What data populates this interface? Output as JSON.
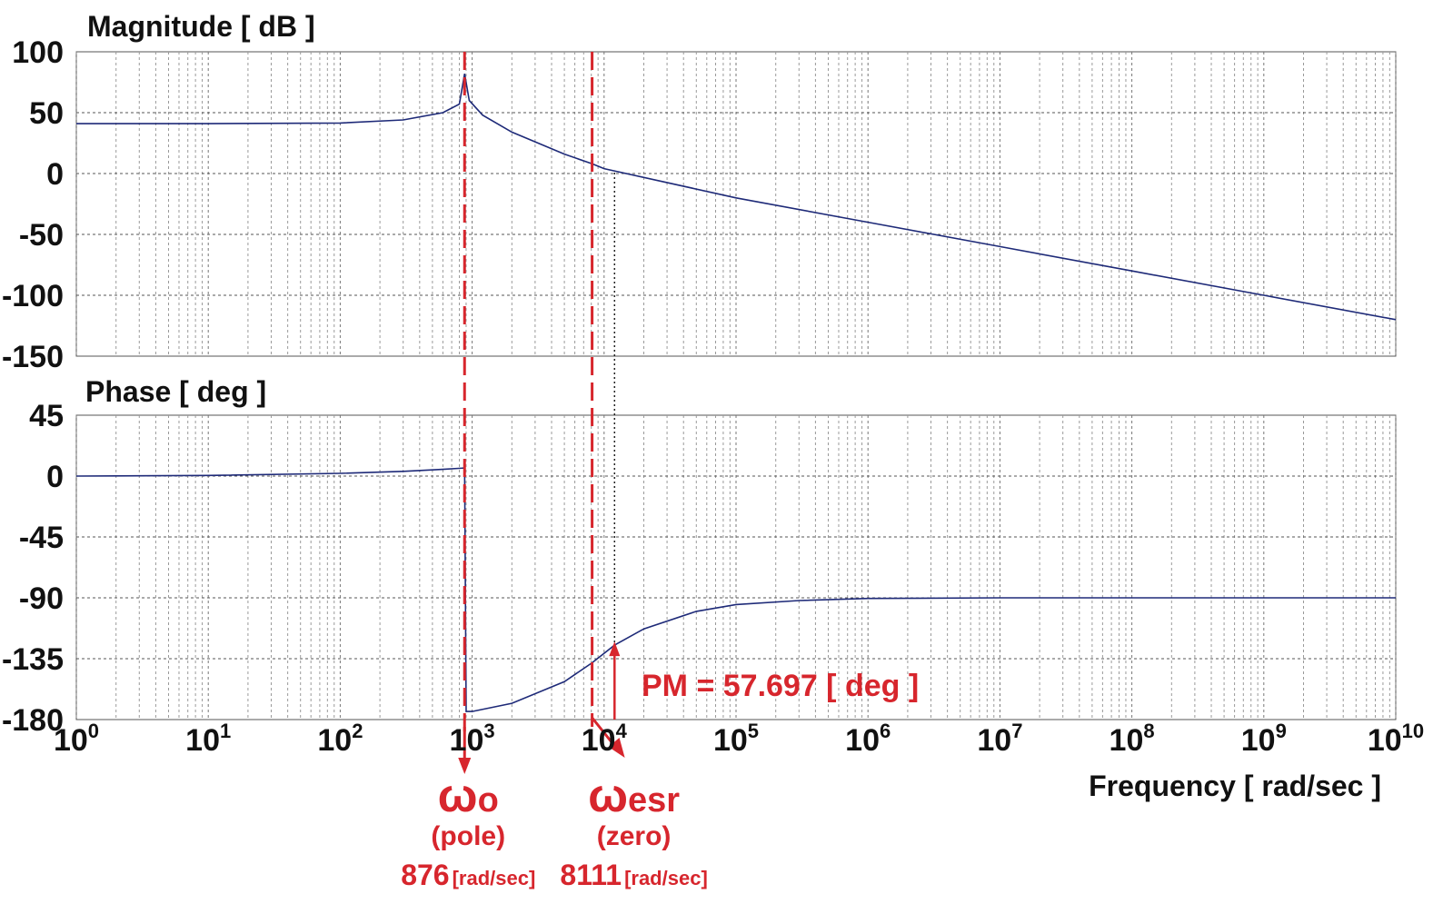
{
  "chart_data": [
    {
      "type": "line",
      "title": "Magnitude [ dB ]",
      "xscale": "log",
      "xlim": [
        1,
        10000000000
      ],
      "ylim": [
        -150,
        100
      ],
      "yticks": [
        "100",
        "50",
        "0",
        "-50",
        "-100",
        "-150"
      ],
      "grid": true,
      "series": [
        {
          "color": "#1e2a78",
          "x": [
            1,
            10,
            100,
            300,
            600,
            800,
            876,
            950,
            1200,
            2000,
            5000,
            8111,
            10000,
            100000,
            1000000,
            10000000,
            100000000,
            1000000000,
            10000000000
          ],
          "y": [
            41,
            41,
            41.5,
            44,
            50,
            57,
            82,
            60,
            48,
            34,
            16,
            8,
            4,
            -20,
            -40,
            -60,
            -80,
            -100,
            -120
          ]
        }
      ]
    },
    {
      "type": "line",
      "title": "Phase [ deg ]",
      "xscale": "log",
      "xlim": [
        1,
        10000000000
      ],
      "ylim": [
        -180,
        45
      ],
      "yticks": [
        "45",
        "0",
        "-45",
        "-90",
        "-135",
        "-180"
      ],
      "xticks": [
        {
          "base": "10",
          "exp": "0"
        },
        {
          "base": "10",
          "exp": "1"
        },
        {
          "base": "10",
          "exp": "2"
        },
        {
          "base": "10",
          "exp": "3"
        },
        {
          "base": "10",
          "exp": "4"
        },
        {
          "base": "10",
          "exp": "5"
        },
        {
          "base": "10",
          "exp": "6"
        },
        {
          "base": "10",
          "exp": "7"
        },
        {
          "base": "10",
          "exp": "8"
        },
        {
          "base": "10",
          "exp": "9"
        },
        {
          "base": "10",
          "exp": "10"
        }
      ],
      "xlabel": "Frequency [ rad/sec ]",
      "grid": true,
      "series": [
        {
          "color": "#1e2a78",
          "x": [
            1,
            10,
            100,
            300,
            600,
            876,
            900,
            1000,
            2000,
            5000,
            8111,
            12000,
            20000,
            50000,
            100000,
            300000,
            1000000,
            10000000,
            10000000000
          ],
          "y": [
            0,
            0.5,
            2,
            3.5,
            5,
            6,
            -174,
            -174,
            -168,
            -152,
            -138,
            -125,
            -113,
            -100,
            -95,
            -92,
            -90.5,
            -90,
            -90
          ]
        }
      ]
    }
  ],
  "annotations": {
    "color": "#d7262d",
    "pole": {
      "freq": 876,
      "symbol": "ω",
      "sub": "o",
      "desc": "(pole)",
      "value": "876",
      "unit": "[rad/sec]"
    },
    "zero": {
      "freq": 8111,
      "symbol": "ω",
      "sub": "esr",
      "desc": "(zero)",
      "value": "8111",
      "unit": "[rad/sec]"
    },
    "pm": {
      "text": "PM = 57.697 [ deg ]",
      "freq": 12000,
      "from_deg": -180,
      "to_deg": -122.3
    }
  }
}
